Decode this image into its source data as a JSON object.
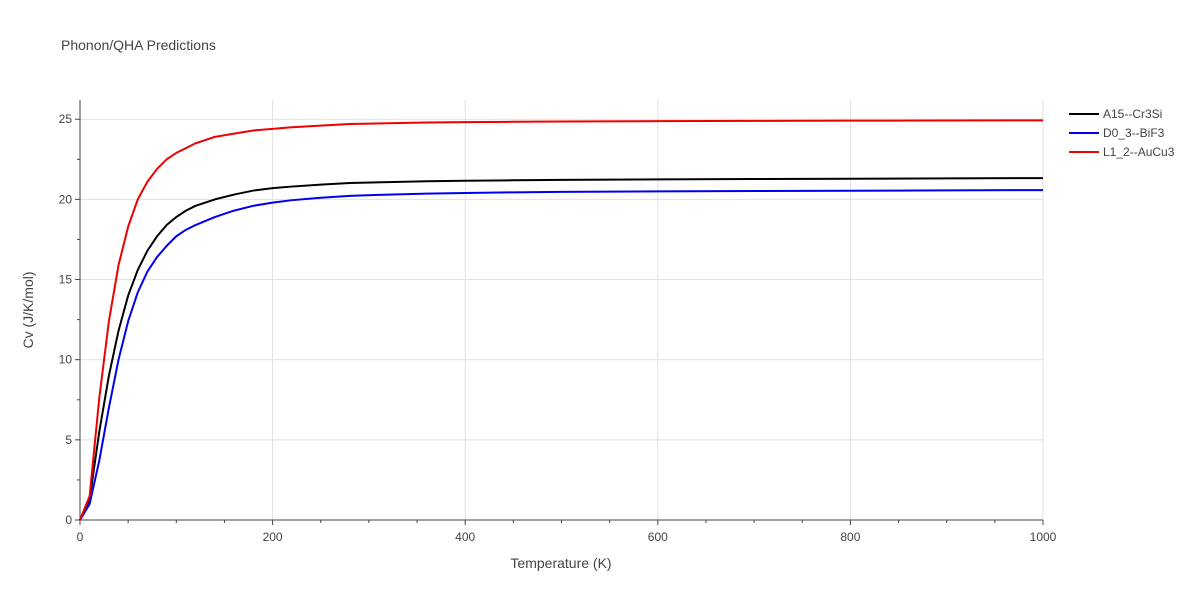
{
  "chart_data": {
    "type": "line",
    "title": "Phonon/QHA Predictions",
    "xlabel": "Temperature (K)",
    "ylabel": "Cv (J/K/mol)",
    "xlim": [
      0,
      1000
    ],
    "ylim": [
      0,
      26.2
    ],
    "x_ticks": [
      0,
      200,
      400,
      600,
      800,
      1000
    ],
    "y_ticks": [
      0,
      5,
      10,
      15,
      20,
      25
    ],
    "grid": true,
    "legend_position": "top-right",
    "series": [
      {
        "name": "A15--Cr3Si",
        "color": "#000000",
        "x": [
          0,
          10,
          20,
          30,
          40,
          50,
          60,
          70,
          80,
          90,
          100,
          110,
          120,
          140,
          160,
          180,
          200,
          220,
          250,
          280,
          320,
          360,
          400,
          450,
          500,
          600,
          700,
          800,
          900,
          1000
        ],
        "y": [
          0,
          1.3,
          5.5,
          9.0,
          11.8,
          14.0,
          15.6,
          16.8,
          17.7,
          18.4,
          18.9,
          19.3,
          19.6,
          20.0,
          20.3,
          20.55,
          20.7,
          20.8,
          20.92,
          21.02,
          21.08,
          21.13,
          21.16,
          21.19,
          21.22,
          21.25,
          21.27,
          21.29,
          21.31,
          21.33
        ]
      },
      {
        "name": "D0_3--BiF3",
        "color": "#0000ee",
        "x": [
          0,
          10,
          20,
          30,
          40,
          50,
          60,
          70,
          80,
          90,
          100,
          110,
          120,
          140,
          160,
          180,
          200,
          220,
          250,
          280,
          320,
          360,
          400,
          450,
          500,
          600,
          700,
          800,
          900,
          1000
        ],
        "y": [
          0,
          1.0,
          3.7,
          7.0,
          10.0,
          12.4,
          14.2,
          15.5,
          16.4,
          17.1,
          17.7,
          18.1,
          18.4,
          18.9,
          19.3,
          19.6,
          19.8,
          19.95,
          20.1,
          20.22,
          20.3,
          20.36,
          20.4,
          20.44,
          20.47,
          20.5,
          20.52,
          20.54,
          20.56,
          20.58
        ]
      },
      {
        "name": "L1_2--AuCu3",
        "color": "#ee0000",
        "x": [
          0,
          10,
          20,
          30,
          40,
          50,
          60,
          70,
          80,
          90,
          100,
          110,
          120,
          140,
          160,
          180,
          200,
          220,
          250,
          280,
          320,
          360,
          400,
          450,
          500,
          600,
          700,
          800,
          900,
          1000
        ],
        "y": [
          0,
          1.5,
          7.6,
          12.4,
          15.9,
          18.3,
          20.0,
          21.1,
          21.9,
          22.5,
          22.9,
          23.2,
          23.5,
          23.9,
          24.1,
          24.3,
          24.4,
          24.5,
          24.6,
          24.7,
          24.75,
          24.8,
          24.82,
          24.84,
          24.86,
          24.88,
          24.9,
          24.91,
          24.92,
          24.93
        ]
      }
    ]
  }
}
